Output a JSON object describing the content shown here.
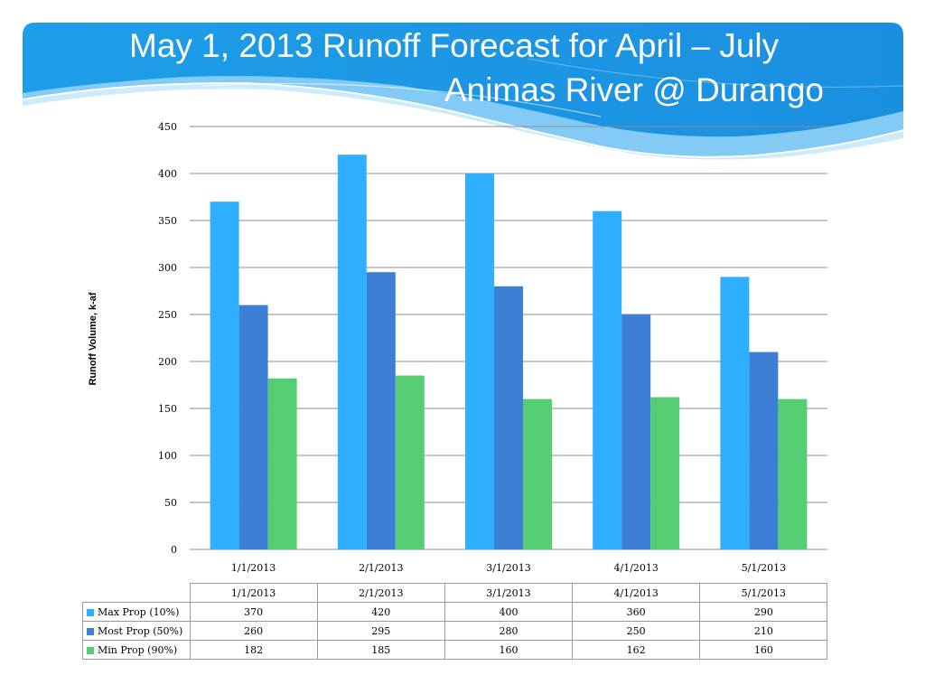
{
  "slide": {
    "title_line1": "May 1, 2013 Runoff Forecast for April – July",
    "title_line2": "Animas River @ Durango",
    "header_color": "#1d9ee8"
  },
  "chart_data": {
    "type": "bar",
    "title": "",
    "xlabel": "",
    "ylabel": "Runoff Volume, k-af",
    "ylim": [
      0,
      450
    ],
    "yticks": [
      0,
      50,
      100,
      150,
      200,
      250,
      300,
      350,
      400,
      450
    ],
    "grid": true,
    "legend": "data-table",
    "categories": [
      "1/1/2013",
      "2/1/2013",
      "3/1/2013",
      "4/1/2013",
      "5/1/2013"
    ],
    "series": [
      {
        "name": "Max Prop (10%)",
        "color": "#2eafff",
        "values": [
          370,
          420,
          400,
          360,
          290
        ]
      },
      {
        "name": "Most Prop (50%)",
        "color": "#3d7fd4",
        "values": [
          260,
          295,
          280,
          250,
          210
        ]
      },
      {
        "name": "Min Prop (90%)",
        "color": "#55cd72",
        "values": [
          182,
          185,
          160,
          162,
          160
        ]
      }
    ]
  }
}
